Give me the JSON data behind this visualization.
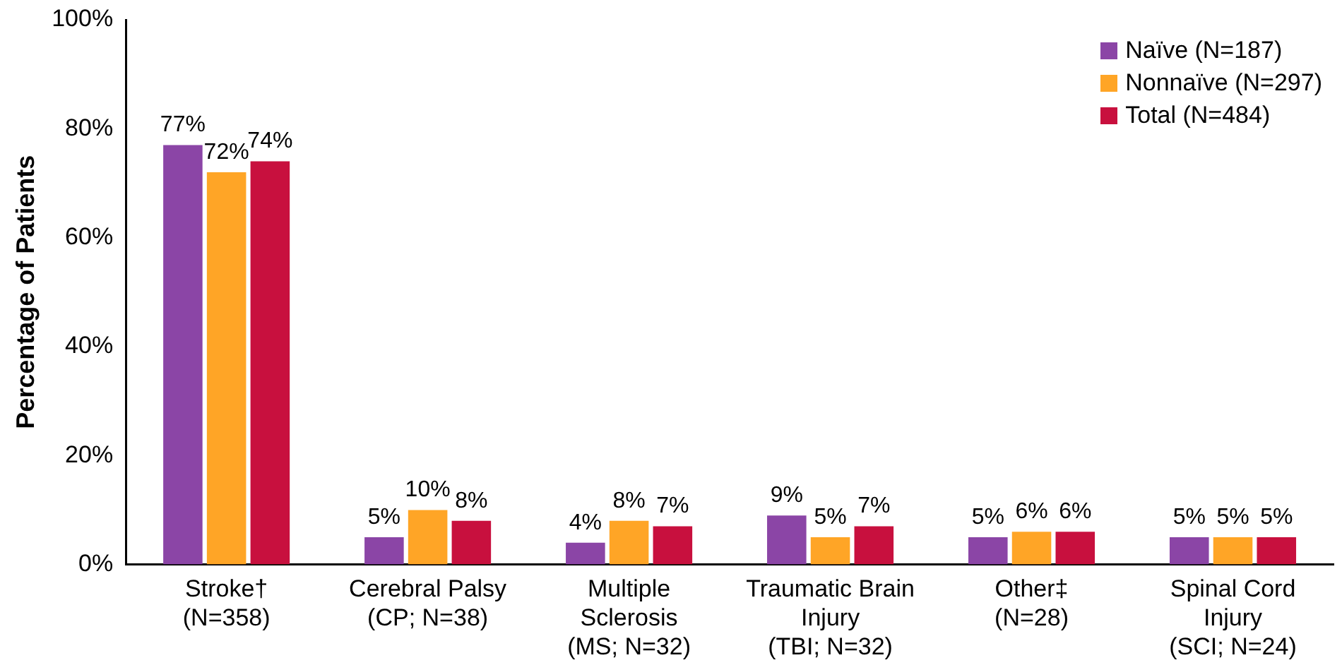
{
  "chart_data": {
    "type": "bar",
    "ylabel": "Percentage of Patients",
    "categories": [
      "Stroke†\n(N=358)",
      "Cerebral Palsy\n(CP; N=38)",
      "Multiple\nSclerosis\n(MS; N=32)",
      "Traumatic Brain\nInjury\n(TBI; N=32)",
      "Other‡\n(N=28)",
      "Spinal Cord\nInjury\n(SCI; N=24)"
    ],
    "series": [
      {
        "name": "Naïve (N=187)",
        "color": "#8b45a6",
        "values": [
          77,
          5,
          4,
          9,
          5,
          5
        ],
        "value_labels": [
          "77%",
          "5%",
          "4%",
          "9%",
          "5%",
          "5%"
        ]
      },
      {
        "name": "Nonnaïve (N=297)",
        "color": "#ffa526",
        "values": [
          72,
          10,
          8,
          5,
          6,
          5
        ],
        "value_labels": [
          "72%",
          "10%",
          "8%",
          "5%",
          "6%",
          "5%"
        ]
      },
      {
        "name": "Total (N=484)",
        "color": "#c8103e",
        "values": [
          74,
          8,
          7,
          7,
          6,
          5
        ],
        "value_labels": [
          "74%",
          "8%",
          "7%",
          "7%",
          "6%",
          "5%"
        ]
      }
    ],
    "ylim": [
      0,
      100
    ],
    "yticks": [
      {
        "value": 0,
        "label": "0%"
      },
      {
        "value": 20,
        "label": "20%"
      },
      {
        "value": 40,
        "label": "40%"
      },
      {
        "value": 60,
        "label": "60%"
      },
      {
        "value": 80,
        "label": "80%"
      },
      {
        "value": 100,
        "label": "100%"
      }
    ],
    "grid": false,
    "legend": "top right"
  }
}
